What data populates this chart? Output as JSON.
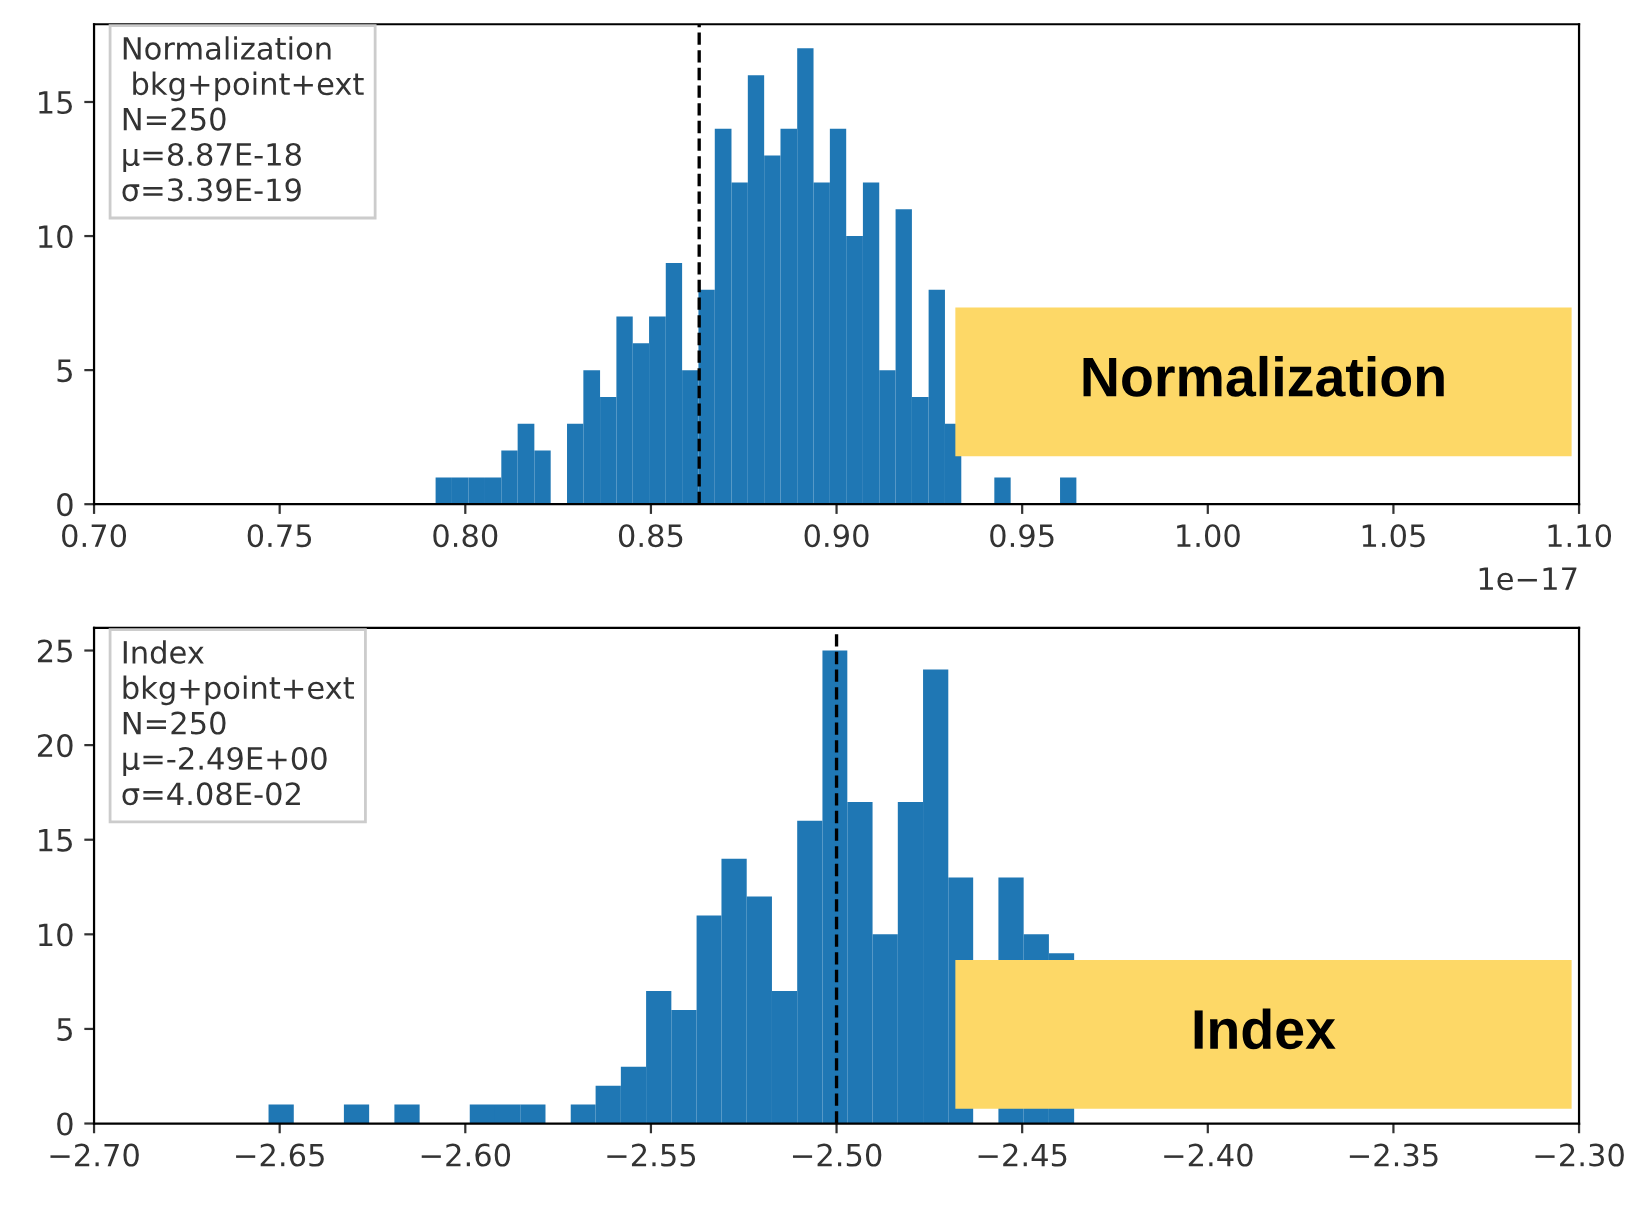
{
  "chart_data": [
    {
      "type": "histogram",
      "bins": [
        0.792,
        0.7964,
        0.8009,
        0.8053,
        0.8097,
        0.8141,
        0.8186,
        0.823,
        0.8274,
        0.8318,
        0.8363,
        0.8407,
        0.8451,
        0.8495,
        0.854,
        0.8584,
        0.8628,
        0.8672,
        0.8717,
        0.8761,
        0.8805,
        0.8849,
        0.8894,
        0.8938,
        0.8982,
        0.9026,
        0.9071,
        0.9115,
        0.9159,
        0.9203,
        0.9248,
        0.9292,
        0.9336,
        0.938,
        0.9425,
        0.9469,
        0.9513,
        0.9557,
        0.9602,
        0.9646,
        0.969
      ],
      "values": [
        1,
        1,
        1,
        1,
        2,
        3,
        2,
        0,
        3,
        5,
        4,
        7,
        6,
        7,
        9,
        5,
        8,
        14,
        12,
        16,
        13,
        14,
        17,
        12,
        14,
        10,
        12,
        5,
        11,
        4,
        8,
        3,
        null,
        null,
        1,
        null,
        null,
        null,
        1,
        null
      ],
      "color": "#1f77b4",
      "xlim": [
        0.7,
        1.1
      ],
      "xticks": [
        {
          "value": 0.7,
          "label": "0.70"
        },
        {
          "value": 0.75,
          "label": "0.75"
        },
        {
          "value": 0.8,
          "label": "0.80"
        },
        {
          "value": 0.85,
          "label": "0.85"
        },
        {
          "value": 0.9,
          "label": "0.90"
        },
        {
          "value": 0.95,
          "label": "0.95"
        },
        {
          "value": 1.0,
          "label": "1.00"
        },
        {
          "value": 1.05,
          "label": "1.05"
        },
        {
          "value": 1.1,
          "label": "1.10"
        }
      ],
      "ylim": [
        0,
        17.9
      ],
      "yticks": [
        0,
        5,
        10,
        15
      ],
      "ref_lines": [
        {
          "axis": "x",
          "value": 0.863,
          "color": "#000000",
          "line_style": "dashed"
        }
      ],
      "annotations": [
        "Normalization\n bkg+point+ext\nN=250\nμ=8.87E-18\nσ=3.39E-19",
        "Normalization",
        "1e−17"
      ],
      "grid": false
    },
    {
      "type": "histogram",
      "bins": [
        -2.653,
        -2.6462,
        -2.6394,
        -2.6327,
        -2.6259,
        -2.6191,
        -2.6123,
        -2.6055,
        -2.5988,
        -2.592,
        -2.5852,
        -2.5784,
        -2.5716,
        -2.5649,
        -2.5581,
        -2.5513,
        -2.5445,
        -2.5377,
        -2.531,
        -2.5242,
        -2.5174,
        -2.5106,
        -2.5038,
        -2.4971,
        -2.4903,
        -2.4835,
        -2.4767,
        -2.4699,
        -2.4632,
        -2.4564,
        -2.4496,
        -2.4428,
        -2.436,
        -2.4293,
        -2.4225,
        -2.4157,
        -2.4089,
        -2.4021,
        -2.3954,
        -2.3886,
        -2.3818
      ],
      "values": [
        1,
        0,
        0,
        1,
        0,
        1,
        0,
        0,
        1,
        1,
        1,
        0,
        1,
        2,
        3,
        7,
        6,
        11,
        14,
        12,
        7,
        16,
        25,
        17,
        10,
        17,
        24,
        13,
        null,
        13,
        10,
        9,
        null,
        null,
        null,
        null,
        0,
        0,
        null,
        null
      ],
      "color": "#1f77b4",
      "xlim": [
        -2.7,
        -2.3
      ],
      "xticks": [
        {
          "value": -2.7,
          "label": "−2.70"
        },
        {
          "value": -2.65,
          "label": "−2.65"
        },
        {
          "value": -2.6,
          "label": "−2.60"
        },
        {
          "value": -2.55,
          "label": "−2.55"
        },
        {
          "value": -2.5,
          "label": "−2.50"
        },
        {
          "value": -2.45,
          "label": "−2.45"
        },
        {
          "value": -2.4,
          "label": "−2.40"
        },
        {
          "value": -2.35,
          "label": "−2.35"
        },
        {
          "value": -2.3,
          "label": "−2.30"
        }
      ],
      "ylim": [
        0,
        26.2
      ],
      "yticks": [
        0,
        5,
        10,
        15,
        20,
        25
      ],
      "ref_lines": [
        {
          "axis": "x",
          "value": -2.5,
          "color": "#000000",
          "line_style": "dashed"
        }
      ],
      "annotations": [
        "Index\nbkg+point+ext\nN=250\nμ=-2.49E+00\nσ=4.08E-02",
        "Index"
      ],
      "grid": false
    }
  ]
}
